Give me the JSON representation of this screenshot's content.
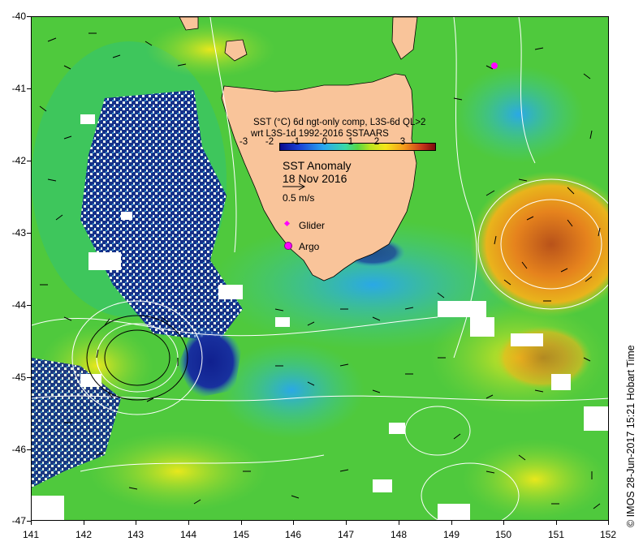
{
  "map": {
    "region": "Tasmania",
    "legend": {
      "title_line1": "SST (°C) 6d ngt-only comp, L3S-6d QL>2",
      "title_line2": "wrt L3S-1d 1992-2016 SSTAARS",
      "ticks": [
        "-3",
        "-2",
        "-1",
        "0",
        "1",
        "2",
        "3"
      ]
    },
    "anomaly_title": "SST Anomaly",
    "date": "18 Nov 2016",
    "scale_label": "0.5 m/s",
    "markers": [
      {
        "label": "Glider",
        "color": "#ff00ff",
        "icon": "diamond-icon"
      },
      {
        "label": "Argo",
        "color": "#ff00ff",
        "icon": "circle-icon"
      }
    ],
    "credit": "© IMOS 28-Jun-2017 15:21 Hobart Time",
    "y_ticks": [
      "-40",
      "-41",
      "-42",
      "-43",
      "-44",
      "-45",
      "-46",
      "-47"
    ],
    "x_ticks": [
      "141",
      "142",
      "143",
      "144",
      "145",
      "146",
      "147",
      "148",
      "149",
      "150",
      "151",
      "152"
    ],
    "colors": {
      "land": "#f9c49a",
      "ocean_base": "#4fc93d",
      "cold": "#0d1f8c",
      "warm_eddy": "#e0781c",
      "contour": "#ffffff"
    }
  }
}
